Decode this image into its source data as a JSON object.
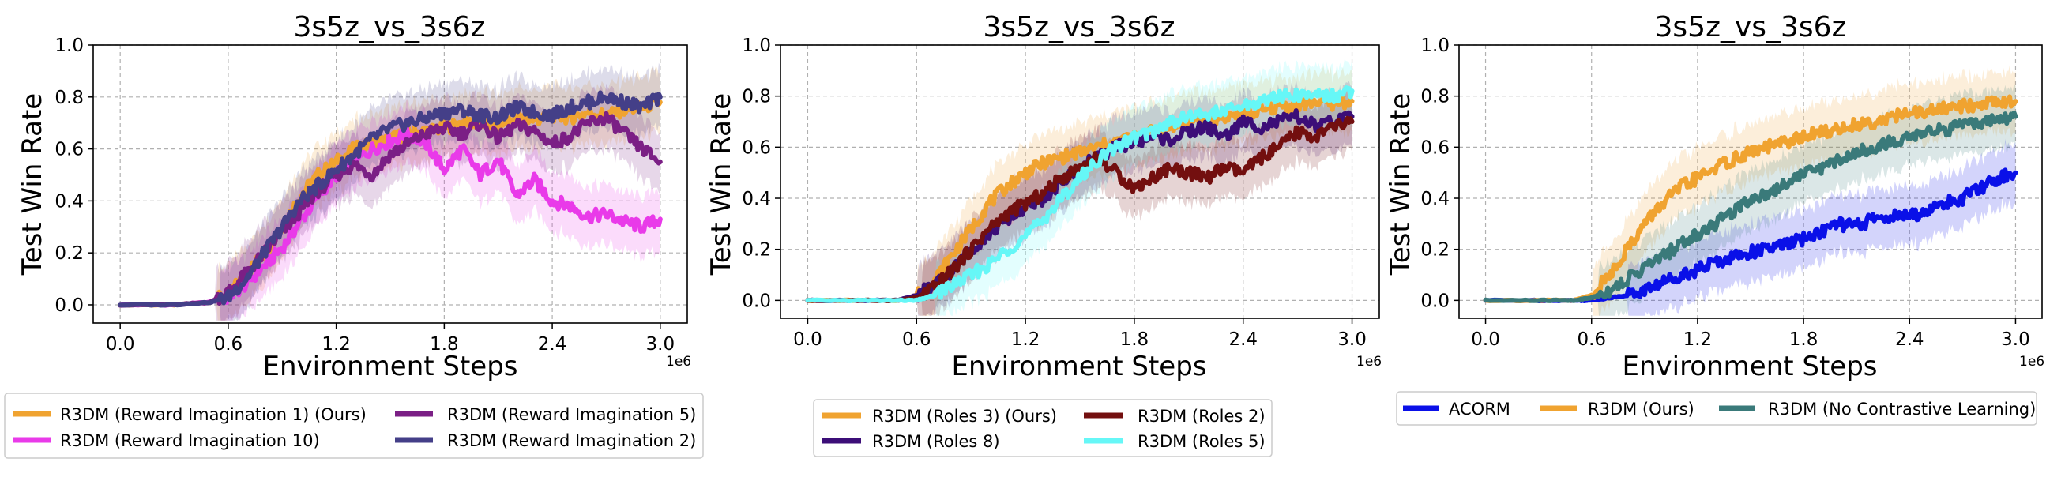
{
  "chart_data": [
    {
      "type": "line",
      "title": "3s5z_vs_3s6z",
      "xlabel": "Environment Steps",
      "ylabel": "Test Win Rate",
      "x_offset_label": "1e6",
      "xlim": [
        -0.15,
        3.15
      ],
      "ylim": [
        -0.07,
        1.0
      ],
      "xticks": [
        0.0,
        0.6,
        1.2,
        1.8,
        2.4,
        3.0
      ],
      "xtick_labels": [
        "0.0",
        "0.6",
        "1.2",
        "1.8",
        "2.4",
        "3.0"
      ],
      "yticks": [
        0.0,
        0.2,
        0.4,
        0.6,
        0.8,
        1.0
      ],
      "ytick_labels": [
        "0.0",
        "0.2",
        "0.4",
        "0.6",
        "0.8",
        "1.0"
      ],
      "grid": true,
      "legend_position": "below",
      "x": [
        0.0,
        0.3,
        0.5,
        0.6,
        0.7,
        0.8,
        0.9,
        1.0,
        1.1,
        1.2,
        1.3,
        1.4,
        1.5,
        1.6,
        1.7,
        1.8,
        1.9,
        2.0,
        2.1,
        2.2,
        2.3,
        2.4,
        2.5,
        2.6,
        2.7,
        2.8,
        2.9,
        3.0
      ],
      "series": [
        {
          "name": "R3DM (Reward Imagination 1) (Ours)",
          "color": "#f0a330",
          "values": [
            0.0,
            0.0,
            0.01,
            0.04,
            0.12,
            0.2,
            0.3,
            0.42,
            0.5,
            0.55,
            0.6,
            0.62,
            0.64,
            0.66,
            0.67,
            0.68,
            0.7,
            0.7,
            0.69,
            0.72,
            0.71,
            0.73,
            0.72,
            0.74,
            0.73,
            0.75,
            0.76,
            0.78
          ]
        },
        {
          "name": "R3DM (Reward Imagination 10)",
          "color": "#e93ae9",
          "values": [
            0.0,
            0.0,
            0.01,
            0.03,
            0.08,
            0.15,
            0.22,
            0.32,
            0.42,
            0.5,
            0.55,
            0.6,
            0.63,
            0.66,
            0.62,
            0.52,
            0.6,
            0.5,
            0.56,
            0.42,
            0.48,
            0.4,
            0.38,
            0.34,
            0.35,
            0.32,
            0.3,
            0.33
          ]
        },
        {
          "name": "R3DM (Reward Imagination 5)",
          "color": "#7b1f85",
          "values": [
            0.0,
            0.0,
            0.01,
            0.05,
            0.12,
            0.2,
            0.28,
            0.36,
            0.44,
            0.5,
            0.54,
            0.5,
            0.58,
            0.62,
            0.66,
            0.68,
            0.66,
            0.7,
            0.64,
            0.69,
            0.67,
            0.62,
            0.65,
            0.7,
            0.72,
            0.66,
            0.6,
            0.55
          ]
        },
        {
          "name": "R3DM (Reward Imagination 2)",
          "color": "#443f88",
          "values": [
            0.0,
            0.0,
            0.01,
            0.03,
            0.1,
            0.2,
            0.3,
            0.4,
            0.46,
            0.52,
            0.58,
            0.64,
            0.68,
            0.7,
            0.72,
            0.74,
            0.75,
            0.73,
            0.72,
            0.76,
            0.74,
            0.73,
            0.76,
            0.78,
            0.8,
            0.78,
            0.76,
            0.8
          ]
        }
      ]
    },
    {
      "type": "line",
      "title": "3s5z_vs_3s6z",
      "xlabel": "Environment Steps",
      "ylabel": "Test Win Rate",
      "x_offset_label": "1e6",
      "xlim": [
        -0.15,
        3.15
      ],
      "ylim": [
        -0.07,
        1.0
      ],
      "xticks": [
        0.0,
        0.6,
        1.2,
        1.8,
        2.4,
        3.0
      ],
      "xtick_labels": [
        "0.0",
        "0.6",
        "1.2",
        "1.8",
        "2.4",
        "3.0"
      ],
      "yticks": [
        0.0,
        0.2,
        0.4,
        0.6,
        0.8,
        1.0
      ],
      "ytick_labels": [
        "0.0",
        "0.2",
        "0.4",
        "0.6",
        "0.8",
        "1.0"
      ],
      "grid": true,
      "legend_position": "below",
      "x": [
        0.0,
        0.3,
        0.5,
        0.6,
        0.7,
        0.8,
        0.9,
        1.0,
        1.1,
        1.2,
        1.3,
        1.4,
        1.5,
        1.6,
        1.7,
        1.8,
        1.9,
        2.0,
        2.1,
        2.2,
        2.3,
        2.4,
        2.5,
        2.6,
        2.7,
        2.8,
        2.9,
        3.0
      ],
      "series": [
        {
          "name": "R3DM (Roles 3) (Ours)",
          "color": "#f0a330",
          "values": [
            0.0,
            0.0,
            0.0,
            0.02,
            0.08,
            0.18,
            0.28,
            0.38,
            0.45,
            0.5,
            0.54,
            0.56,
            0.58,
            0.6,
            0.62,
            0.64,
            0.66,
            0.68,
            0.7,
            0.7,
            0.72,
            0.73,
            0.74,
            0.76,
            0.76,
            0.78,
            0.77,
            0.78
          ]
        },
        {
          "name": "R3DM (Roles 8)",
          "color": "#3c0e78",
          "values": [
            0.0,
            0.0,
            0.0,
            0.02,
            0.06,
            0.12,
            0.2,
            0.26,
            0.32,
            0.36,
            0.4,
            0.46,
            0.52,
            0.56,
            0.6,
            0.62,
            0.64,
            0.63,
            0.66,
            0.68,
            0.64,
            0.7,
            0.68,
            0.7,
            0.72,
            0.68,
            0.7,
            0.72
          ]
        },
        {
          "name": "R3DM (Roles 2)",
          "color": "#730f0f",
          "values": [
            0.0,
            0.0,
            0.0,
            0.01,
            0.05,
            0.12,
            0.2,
            0.28,
            0.34,
            0.38,
            0.42,
            0.48,
            0.52,
            0.56,
            0.5,
            0.44,
            0.48,
            0.52,
            0.5,
            0.48,
            0.52,
            0.5,
            0.56,
            0.6,
            0.66,
            0.64,
            0.68,
            0.7
          ]
        },
        {
          "name": "R3DM (Roles 5)",
          "color": "#66f7f7",
          "values": [
            0.0,
            0.0,
            0.0,
            0.0,
            0.02,
            0.06,
            0.1,
            0.14,
            0.2,
            0.25,
            0.32,
            0.4,
            0.48,
            0.55,
            0.6,
            0.64,
            0.66,
            0.7,
            0.72,
            0.73,
            0.74,
            0.76,
            0.78,
            0.8,
            0.8,
            0.81,
            0.8,
            0.82
          ]
        }
      ]
    },
    {
      "type": "line",
      "title": "3s5z_vs_3s6z",
      "xlabel": "Environment Steps",
      "ylabel": "Test Win Rate",
      "x_offset_label": "1e6",
      "xlim": [
        -0.15,
        3.15
      ],
      "ylim": [
        -0.07,
        1.0
      ],
      "xticks": [
        0.0,
        0.6,
        1.2,
        1.8,
        2.4,
        3.0
      ],
      "xtick_labels": [
        "0.0",
        "0.6",
        "1.2",
        "1.8",
        "2.4",
        "3.0"
      ],
      "yticks": [
        0.0,
        0.2,
        0.4,
        0.6,
        0.8,
        1.0
      ],
      "ytick_labels": [
        "0.0",
        "0.2",
        "0.4",
        "0.6",
        "0.8",
        "1.0"
      ],
      "grid": true,
      "legend_position": "below",
      "x": [
        0.0,
        0.3,
        0.5,
        0.6,
        0.7,
        0.8,
        0.9,
        1.0,
        1.1,
        1.2,
        1.3,
        1.4,
        1.5,
        1.6,
        1.7,
        1.8,
        1.9,
        2.0,
        2.1,
        2.2,
        2.3,
        2.4,
        2.5,
        2.6,
        2.7,
        2.8,
        2.9,
        3.0
      ],
      "series": [
        {
          "name": "ACORM",
          "color": "#0a10e8",
          "values": [
            0.0,
            0.0,
            0.0,
            0.0,
            0.01,
            0.02,
            0.04,
            0.07,
            0.1,
            0.12,
            0.15,
            0.17,
            0.19,
            0.2,
            0.22,
            0.24,
            0.27,
            0.3,
            0.29,
            0.32,
            0.33,
            0.33,
            0.35,
            0.38,
            0.4,
            0.44,
            0.48,
            0.5
          ]
        },
        {
          "name": "R3DM (Ours)",
          "color": "#f0a330",
          "values": [
            0.0,
            0.0,
            0.0,
            0.02,
            0.1,
            0.2,
            0.3,
            0.38,
            0.44,
            0.48,
            0.52,
            0.55,
            0.58,
            0.6,
            0.62,
            0.64,
            0.66,
            0.67,
            0.69,
            0.7,
            0.72,
            0.73,
            0.74,
            0.75,
            0.76,
            0.77,
            0.78,
            0.78
          ]
        },
        {
          "name": "R3DM (No Contrastive Learning)",
          "color": "#3a7a7a",
          "values": [
            0.0,
            0.0,
            0.0,
            0.01,
            0.04,
            0.08,
            0.13,
            0.17,
            0.22,
            0.26,
            0.3,
            0.35,
            0.4,
            0.42,
            0.46,
            0.5,
            0.52,
            0.55,
            0.58,
            0.6,
            0.62,
            0.64,
            0.66,
            0.67,
            0.68,
            0.7,
            0.7,
            0.72
          ]
        }
      ]
    }
  ]
}
